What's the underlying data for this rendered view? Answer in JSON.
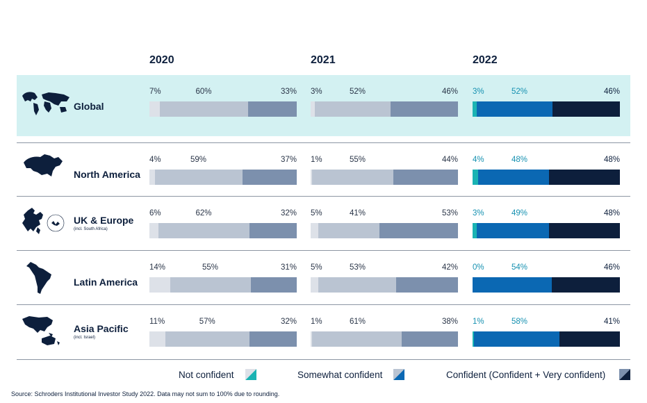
{
  "years": [
    "2020",
    "2021",
    "2022"
  ],
  "colors": {
    "past_not": "#dde1e8",
    "past_somewhat": "#bac4d2",
    "past_confident": "#7c90ad",
    "y2022_not": "#1ab3b3",
    "y2022_somewhat": "#0b68b3",
    "y2022_confident": "#0d1f3c",
    "highlight": "#d3f1f2"
  },
  "regions": [
    {
      "name": "Global",
      "sub": "",
      "icon": "world-map-icon"
    },
    {
      "name": "North America",
      "sub": "",
      "icon": "north-america-map-icon"
    },
    {
      "name": "UK & Europe",
      "sub": "(incl. South Africa)",
      "icon": "europe-map-icon"
    },
    {
      "name": "Latin America",
      "sub": "",
      "icon": "latin-america-map-icon"
    },
    {
      "name": "Asia Pacific",
      "sub": "(incl. Israel)",
      "icon": "asia-pacific-map-icon"
    }
  ],
  "chart_data": {
    "type": "bar",
    "stacked": true,
    "orientation": "horizontal",
    "categories": [
      "Not confident",
      "Somewhat confident",
      "Confident (Confident + Very confident)"
    ],
    "groups": [
      {
        "region": "Global",
        "years": [
          {
            "year": "2020",
            "values": [
              7,
              60,
              33
            ]
          },
          {
            "year": "2021",
            "values": [
              3,
              52,
              46
            ]
          },
          {
            "year": "2022",
            "values": [
              3,
              52,
              46
            ]
          }
        ]
      },
      {
        "region": "North America",
        "years": [
          {
            "year": "2020",
            "values": [
              4,
              59,
              37
            ]
          },
          {
            "year": "2021",
            "values": [
              1,
              55,
              44
            ]
          },
          {
            "year": "2022",
            "values": [
              4,
              48,
              48
            ]
          }
        ]
      },
      {
        "region": "UK & Europe",
        "years": [
          {
            "year": "2020",
            "values": [
              6,
              62,
              32
            ]
          },
          {
            "year": "2021",
            "values": [
              5,
              41,
              53
            ]
          },
          {
            "year": "2022",
            "values": [
              3,
              49,
              48
            ]
          }
        ]
      },
      {
        "region": "Latin America",
        "years": [
          {
            "year": "2020",
            "values": [
              14,
              55,
              31
            ]
          },
          {
            "year": "2021",
            "values": [
              5,
              53,
              42
            ]
          },
          {
            "year": "2022",
            "values": [
              0,
              54,
              46
            ]
          }
        ]
      },
      {
        "region": "Asia Pacific",
        "years": [
          {
            "year": "2020",
            "values": [
              11,
              57,
              32
            ]
          },
          {
            "year": "2021",
            "values": [
              1,
              61,
              38
            ]
          },
          {
            "year": "2022",
            "values": [
              1,
              58,
              41
            ]
          }
        ]
      }
    ]
  },
  "legend": {
    "not_confident": "Not confident",
    "somewhat_confident": "Somewhat confident",
    "confident": "Confident (Confident + Very confident)"
  },
  "source": "Source: Schroders Institutional Investor Study 2022. Data may not sum to 100% due to rounding."
}
